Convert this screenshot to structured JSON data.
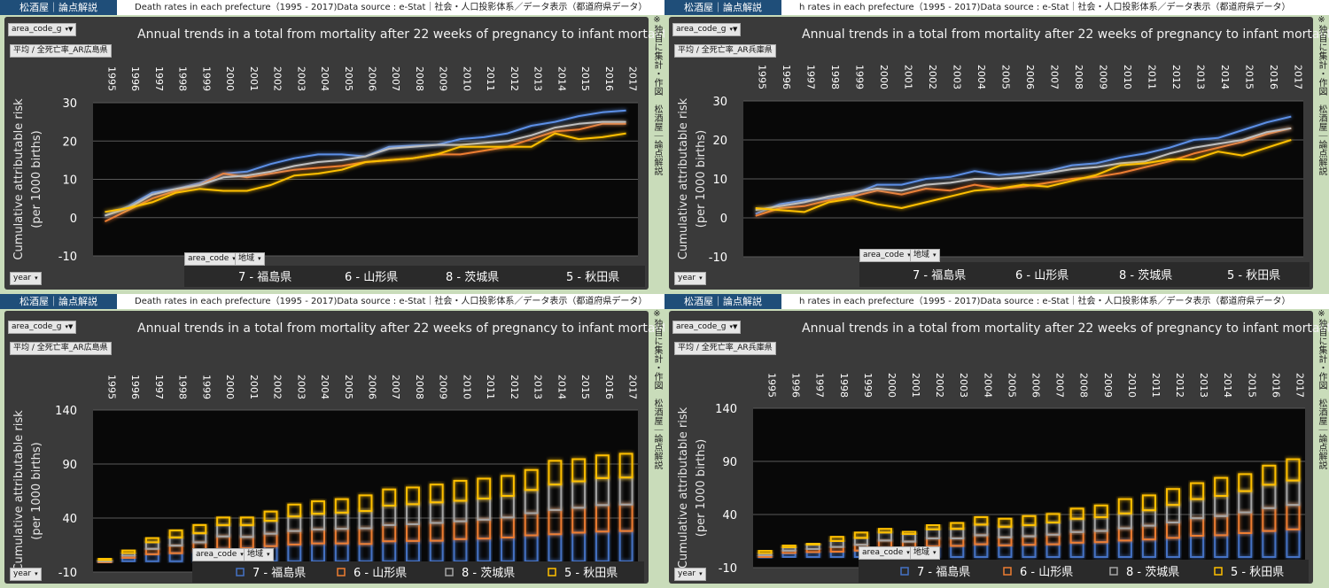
{
  "brand": "松酒屋｜論点解説",
  "side_note": "※独自に集計・作図　松酒屋｜論点解説",
  "headers": [
    "Death rates in each prefecture（1995 - 2017)Data source : e-Stat｜社会・人口投影体系／データ表示（都道府県データ）",
    "h rates in each prefecture（1995 - 2017)Data source : e-Stat｜社会・人口投影体系／データ表示（都道府県データ）"
  ],
  "filters": {
    "area_code_g": "area_code_g",
    "area_code": "area_code",
    "region": "地域",
    "year": "year",
    "avg_hiroshima": "平均 / 全死亡率_AR広島県",
    "avg_hyogo": "平均 / 全死亡率_AR兵庫県"
  },
  "chart_data": [
    {
      "id": "top-left",
      "type": "line",
      "title": "Annual trends in a total from mortality after 22 weeks of pregnancy to infant mortality",
      "ylabel": "Cumulative attributable risk\n(per 1000 births)",
      "ylim": [
        -10,
        30
      ],
      "yticks": [
        -10,
        0,
        10,
        20,
        30
      ],
      "x": [
        "1995",
        "1996",
        "1997",
        "1998",
        "1999",
        "2000",
        "2001",
        "2002",
        "2003",
        "2004",
        "2005",
        "2006",
        "2007",
        "2008",
        "2009",
        "2010",
        "2011",
        "2012",
        "2013",
        "2014",
        "2015",
        "2016",
        "2017"
      ],
      "series": [
        {
          "name": "7 - 福島県",
          "color": "#5b8fe6",
          "values": [
            0.5,
            3.0,
            6.5,
            7.5,
            9.0,
            11.5,
            12.0,
            14.0,
            15.5,
            16.5,
            16.5,
            16.0,
            18.5,
            18.8,
            19.0,
            20.5,
            21.0,
            22.0,
            24.0,
            25.0,
            26.5,
            27.5,
            28.0
          ]
        },
        {
          "name": "6 - 山形県",
          "color": "#ed7d31",
          "values": [
            -1.0,
            2.0,
            5.0,
            7.0,
            8.5,
            11.5,
            10.5,
            11.5,
            12.5,
            13.0,
            13.5,
            14.5,
            15.0,
            15.5,
            16.5,
            16.5,
            17.5,
            18.5,
            20.5,
            22.5,
            23.0,
            24.5,
            24.5
          ]
        },
        {
          "name": "8 - 茨城県",
          "color": "#bfbfbf",
          "values": [
            0.5,
            2.5,
            6.0,
            7.5,
            8.5,
            10.5,
            11.0,
            12.0,
            13.5,
            14.5,
            15.0,
            16.0,
            18.0,
            18.5,
            19.0,
            19.0,
            19.5,
            20.0,
            21.5,
            23.5,
            24.5,
            25.0,
            25.0
          ]
        },
        {
          "name": "5 - 秋田県",
          "color": "#ffc000",
          "values": [
            1.5,
            2.5,
            4.0,
            6.5,
            7.5,
            7.0,
            7.0,
            8.5,
            11.0,
            11.5,
            12.5,
            14.5,
            15.0,
            15.5,
            16.5,
            18.5,
            18.5,
            18.5,
            18.5,
            22.0,
            20.5,
            21.0,
            22.0
          ]
        }
      ]
    },
    {
      "id": "top-right",
      "type": "line",
      "title": "Annual trends in a total from mortality after 22 weeks of pregnancy to infant mortality",
      "ylabel": "Cumulative attributable risk\n(per 1000 births)",
      "ylim": [
        -10,
        30
      ],
      "yticks": [
        -10,
        0,
        10,
        20,
        30
      ],
      "x": [
        "1995",
        "1996",
        "1997",
        "1998",
        "1999",
        "2000",
        "2001",
        "2002",
        "2003",
        "2004",
        "2005",
        "2006",
        "2007",
        "2008",
        "2009",
        "2010",
        "2011",
        "2012",
        "2013",
        "2014",
        "2015",
        "2016",
        "2017"
      ],
      "series": [
        {
          "name": "7 - 福島県",
          "color": "#5b8fe6",
          "values": [
            1.0,
            3.5,
            4.5,
            5.0,
            6.0,
            8.5,
            8.5,
            10.0,
            10.5,
            12.0,
            11.0,
            11.5,
            12.0,
            13.5,
            14.0,
            15.5,
            16.5,
            18.0,
            20.0,
            20.5,
            22.5,
            24.5,
            26.0
          ]
        },
        {
          "name": "6 - 山形県",
          "color": "#ed7d31",
          "values": [
            0.5,
            2.5,
            3.0,
            4.5,
            5.5,
            7.0,
            6.0,
            7.5,
            7.0,
            8.5,
            7.5,
            8.0,
            9.0,
            10.0,
            10.5,
            11.5,
            13.0,
            14.5,
            16.5,
            18.0,
            19.5,
            21.5,
            23.0
          ]
        },
        {
          "name": "8 - 茨城県",
          "color": "#bfbfbf",
          "values": [
            2.0,
            3.0,
            4.0,
            5.5,
            6.5,
            7.5,
            7.0,
            8.5,
            9.0,
            10.0,
            10.0,
            10.5,
            11.5,
            12.5,
            13.0,
            14.0,
            14.5,
            16.5,
            18.0,
            19.0,
            20.0,
            22.0,
            23.0
          ]
        },
        {
          "name": "5 - 秋田県",
          "color": "#ffc000",
          "values": [
            2.5,
            2.0,
            1.5,
            4.0,
            5.0,
            3.5,
            2.5,
            4.0,
            5.5,
            7.0,
            7.5,
            8.5,
            8.0,
            9.5,
            11.0,
            13.5,
            14.0,
            15.0,
            15.0,
            17.0,
            16.0,
            18.0,
            20.0
          ]
        }
      ]
    },
    {
      "id": "bottom-left",
      "type": "bar",
      "stacked": true,
      "title": "Annual trends in a total from mortality after 22 weeks of pregnancy to infant mortality",
      "ylabel": "Cumulative attributable risk\n(per 1000 births)",
      "ylim": [
        -10,
        140
      ],
      "yticks": [
        -10,
        40,
        90,
        140
      ],
      "x": [
        "1995",
        "1996",
        "1997",
        "1998",
        "1999",
        "2000",
        "2001",
        "2002",
        "2003",
        "2004",
        "2005",
        "2006",
        "2007",
        "2008",
        "2009",
        "2010",
        "2011",
        "2012",
        "2013",
        "2014",
        "2015",
        "2016",
        "2017"
      ],
      "series": [
        {
          "name": "7 - 福島県",
          "color": "#4472c4",
          "values": [
            0.5,
            3.0,
            6.5,
            7.5,
            9.0,
            11.5,
            12.0,
            14.0,
            15.5,
            16.5,
            16.5,
            16.0,
            18.5,
            18.8,
            19.0,
            20.5,
            21.0,
            22.0,
            24.0,
            25.0,
            26.5,
            27.5,
            28.0
          ]
        },
        {
          "name": "6 - 山形県",
          "color": "#ed7d31",
          "values": [
            -1.0,
            2.0,
            5.0,
            7.0,
            8.5,
            11.5,
            10.5,
            11.5,
            12.5,
            13.0,
            13.5,
            14.5,
            15.0,
            15.5,
            16.5,
            16.5,
            17.5,
            18.5,
            20.5,
            22.5,
            23.0,
            24.5,
            24.5
          ]
        },
        {
          "name": "8 - 茨城県",
          "color": "#a5a5a5",
          "values": [
            0.5,
            2.5,
            6.0,
            7.5,
            8.5,
            10.5,
            11.0,
            12.0,
            13.5,
            14.5,
            15.0,
            16.0,
            18.0,
            18.5,
            19.0,
            19.0,
            19.5,
            20.0,
            21.5,
            23.5,
            24.5,
            25.0,
            25.0
          ]
        },
        {
          "name": "5 - 秋田県",
          "color": "#ffc000",
          "values": [
            1.5,
            2.5,
            4.0,
            6.5,
            7.5,
            7.0,
            7.0,
            8.5,
            11.0,
            11.5,
            12.5,
            14.5,
            15.0,
            15.5,
            16.5,
            18.5,
            18.5,
            18.5,
            18.5,
            22.0,
            20.5,
            21.0,
            22.0
          ]
        }
      ]
    },
    {
      "id": "bottom-right",
      "type": "bar",
      "stacked": true,
      "title": "Annual trends in a total from mortality after 22 weeks of pregnancy to infant mortality",
      "ylabel": "Cumulative attributable risk\n(per 1000 births)",
      "ylim": [
        -10,
        140
      ],
      "yticks": [
        -10,
        40,
        90,
        140
      ],
      "x": [
        "1995",
        "1996",
        "1997",
        "1998",
        "1999",
        "2000",
        "2001",
        "2002",
        "2003",
        "2004",
        "2005",
        "2006",
        "2007",
        "2008",
        "2009",
        "2010",
        "2011",
        "2012",
        "2013",
        "2014",
        "2015",
        "2016",
        "2017"
      ],
      "series": [
        {
          "name": "7 - 福島県",
          "color": "#4472c4",
          "values": [
            1.0,
            3.5,
            4.5,
            5.0,
            6.0,
            8.5,
            8.5,
            10.0,
            10.5,
            12.0,
            11.0,
            11.5,
            12.0,
            13.5,
            14.0,
            15.5,
            16.5,
            18.0,
            20.0,
            20.5,
            22.5,
            24.5,
            26.0
          ]
        },
        {
          "name": "6 - 山形県",
          "color": "#ed7d31",
          "values": [
            0.5,
            2.5,
            3.0,
            4.5,
            5.5,
            7.0,
            6.0,
            7.5,
            7.0,
            8.5,
            7.5,
            8.0,
            9.0,
            10.0,
            10.5,
            11.5,
            13.0,
            14.5,
            16.5,
            18.0,
            19.5,
            21.5,
            23.0
          ]
        },
        {
          "name": "8 - 茨城県",
          "color": "#a5a5a5",
          "values": [
            2.0,
            3.0,
            4.0,
            5.5,
            6.5,
            7.5,
            7.0,
            8.5,
            9.0,
            10.0,
            10.0,
            10.5,
            11.5,
            12.5,
            13.0,
            14.0,
            14.5,
            16.5,
            18.0,
            19.0,
            20.0,
            22.0,
            23.0
          ]
        },
        {
          "name": "5 - 秋田県",
          "color": "#ffc000",
          "values": [
            2.5,
            2.0,
            1.5,
            4.0,
            5.0,
            3.5,
            2.5,
            4.0,
            5.5,
            7.0,
            7.5,
            8.5,
            8.0,
            9.5,
            11.0,
            13.5,
            14.0,
            15.0,
            15.0,
            17.0,
            16.0,
            18.0,
            20.0
          ]
        }
      ]
    }
  ]
}
